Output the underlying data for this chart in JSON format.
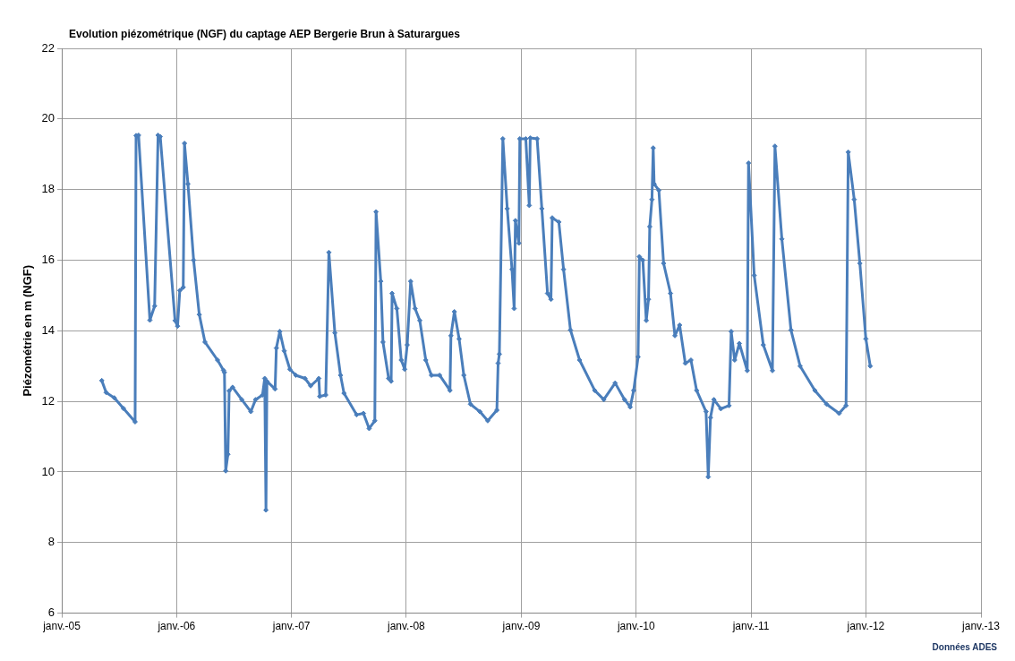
{
  "chart_data": {
    "type": "line",
    "title": "Evolution piézométrique (NGF) du captage AEP Bergerie Brun à Saturargues",
    "ylabel": "Piézométrie en m (NGF)",
    "annotations": [
      "Données ADES"
    ],
    "xlim": [
      "2005-01",
      "2013-01"
    ],
    "xticks": [
      {
        "value": "2005-01",
        "label": "janv.-05"
      },
      {
        "value": "2006-01",
        "label": "janv.-06"
      },
      {
        "value": "2007-01",
        "label": "janv.-07"
      },
      {
        "value": "2008-01",
        "label": "janv.-08"
      },
      {
        "value": "2009-01",
        "label": "janv.-09"
      },
      {
        "value": "2010-01",
        "label": "janv.-10"
      },
      {
        "value": "2011-01",
        "label": "janv.-11"
      },
      {
        "value": "2012-01",
        "label": "janv.-12"
      },
      {
        "value": "2013-01",
        "label": "janv.-13"
      }
    ],
    "ylim": [
      6,
      22
    ],
    "yticks": [
      6,
      8,
      10,
      12,
      14,
      16,
      18,
      20,
      22
    ],
    "grid": true,
    "legend": false,
    "marker": "diamond",
    "line_style": "solid",
    "x": [
      "2005-05-08",
      "2005-05-22",
      "2005-06-17",
      "2005-07-16",
      "2005-08-22",
      "2005-08-25",
      "2005-09-02",
      "2005-10-08",
      "2005-10-23",
      "2005-11-03",
      "2005-11-10",
      "2005-12-27",
      "2006-01-04",
      "2006-01-11",
      "2006-01-22",
      "2006-01-26",
      "2006-02-06",
      "2006-02-24",
      "2006-03-14",
      "2006-04-01",
      "2006-05-11",
      "2006-05-30",
      "2006-06-02",
      "2006-06-06",
      "2006-06-13",
      "2006-06-17",
      "2006-06-28",
      "2006-07-27",
      "2006-08-25",
      "2006-09-09",
      "2006-10-01",
      "2006-10-08",
      "2006-10-12",
      "2006-10-15",
      "2006-11-10",
      "2006-11-14",
      "2006-11-25",
      "2006-12-09",
      "2006-12-27",
      "2007-01-15",
      "2007-02-13",
      "2007-03-03",
      "2007-03-29",
      "2007-04-01",
      "2007-04-20",
      "2007-04-30",
      "2007-05-19",
      "2007-06-06",
      "2007-06-17",
      "2007-07-27",
      "2007-08-18",
      "2007-09-05",
      "2007-09-23",
      "2007-09-27",
      "2007-10-12",
      "2007-10-19",
      "2007-11-06",
      "2007-11-14",
      "2007-11-17",
      "2007-12-02",
      "2007-12-16",
      "2007-12-27",
      "2008-01-04",
      "2008-01-15",
      "2008-01-29",
      "2008-02-13",
      "2008-03-03",
      "2008-03-21",
      "2008-04-16",
      "2008-05-19",
      "2008-05-22",
      "2008-06-02",
      "2008-06-17",
      "2008-07-02",
      "2008-07-23",
      "2008-08-22",
      "2008-09-16",
      "2008-10-15",
      "2008-10-19",
      "2008-10-23",
      "2008-11-03",
      "2008-11-17",
      "2008-12-02",
      "2008-12-09",
      "2008-12-13",
      "2008-12-24",
      "2008-12-27",
      "2009-01-15",
      "2009-01-26",
      "2009-01-29",
      "2009-02-20",
      "2009-03-07",
      "2009-03-25",
      "2009-04-05",
      "2009-04-09",
      "2009-04-30",
      "2009-05-15",
      "2009-06-06",
      "2009-07-05",
      "2009-08-22",
      "2009-09-20",
      "2009-10-26",
      "2009-11-25",
      "2009-12-13",
      "2009-12-24",
      "2010-01-07",
      "2010-01-11",
      "2010-01-22",
      "2010-02-02",
      "2010-02-09",
      "2010-02-13",
      "2010-02-20",
      "2010-02-24",
      "2010-02-27",
      "2010-03-14",
      "2010-03-29",
      "2010-04-20",
      "2010-05-04",
      "2010-05-19",
      "2010-06-06",
      "2010-06-24",
      "2010-07-12",
      "2010-08-11",
      "2010-08-18",
      "2010-08-25",
      "2010-09-05",
      "2010-09-27",
      "2010-10-23",
      "2010-10-30",
      "2010-11-10",
      "2010-11-25",
      "2010-12-20",
      "2010-12-24",
      "2011-01-11",
      "2011-02-09",
      "2011-03-10",
      "2011-03-18",
      "2011-04-09",
      "2011-05-08",
      "2011-06-06",
      "2011-07-23",
      "2011-08-29",
      "2011-10-08",
      "2011-10-30",
      "2011-11-06",
      "2011-11-25",
      "2011-12-13",
      "2012-01-01",
      "2012-01-15"
    ],
    "series": [
      {
        "color": "#4a7ebb",
        "values": [
          12.59,
          12.25,
          12.1,
          11.8,
          11.42,
          19.53,
          19.54,
          14.3,
          14.7,
          19.54,
          19.5,
          14.29,
          14.13,
          15.14,
          15.23,
          19.31,
          18.16,
          16.0,
          14.46,
          13.68,
          13.17,
          12.88,
          12.82,
          10.03,
          10.5,
          12.3,
          12.4,
          12.05,
          11.71,
          12.05,
          12.18,
          12.65,
          8.92,
          12.57,
          12.35,
          13.51,
          13.98,
          13.43,
          12.91,
          12.74,
          12.65,
          12.44,
          12.65,
          12.14,
          12.18,
          16.22,
          13.94,
          12.74,
          12.23,
          11.62,
          11.66,
          11.23,
          11.45,
          17.37,
          15.4,
          13.68,
          12.65,
          12.57,
          15.06,
          14.63,
          13.17,
          12.91,
          13.6,
          15.4,
          14.63,
          14.29,
          13.17,
          12.74,
          12.74,
          12.31,
          13.86,
          14.54,
          13.77,
          12.74,
          11.92,
          11.71,
          11.45,
          11.75,
          13.08,
          13.34,
          19.44,
          17.46,
          15.74,
          14.63,
          17.12,
          16.48,
          19.44,
          19.44,
          17.55,
          19.46,
          19.44,
          17.46,
          15.06,
          14.89,
          17.2,
          17.08,
          15.74,
          14.02,
          13.17,
          12.31,
          12.05,
          12.52,
          12.05,
          11.84,
          12.31,
          13.26,
          16.1,
          16.0,
          14.29,
          14.89,
          16.95,
          17.72,
          19.18,
          18.16,
          17.98,
          15.91,
          15.06,
          13.86,
          14.16,
          13.08,
          13.17,
          12.31,
          11.71,
          9.86,
          11.54,
          12.05,
          11.79,
          11.88,
          13.98,
          13.17,
          13.64,
          12.87,
          18.75,
          15.57,
          13.6,
          12.87,
          19.23,
          16.6,
          14.02,
          13.0,
          12.31,
          11.92,
          11.66,
          11.88,
          19.06,
          17.72,
          15.91,
          13.77,
          13.0
        ]
      }
    ]
  }
}
